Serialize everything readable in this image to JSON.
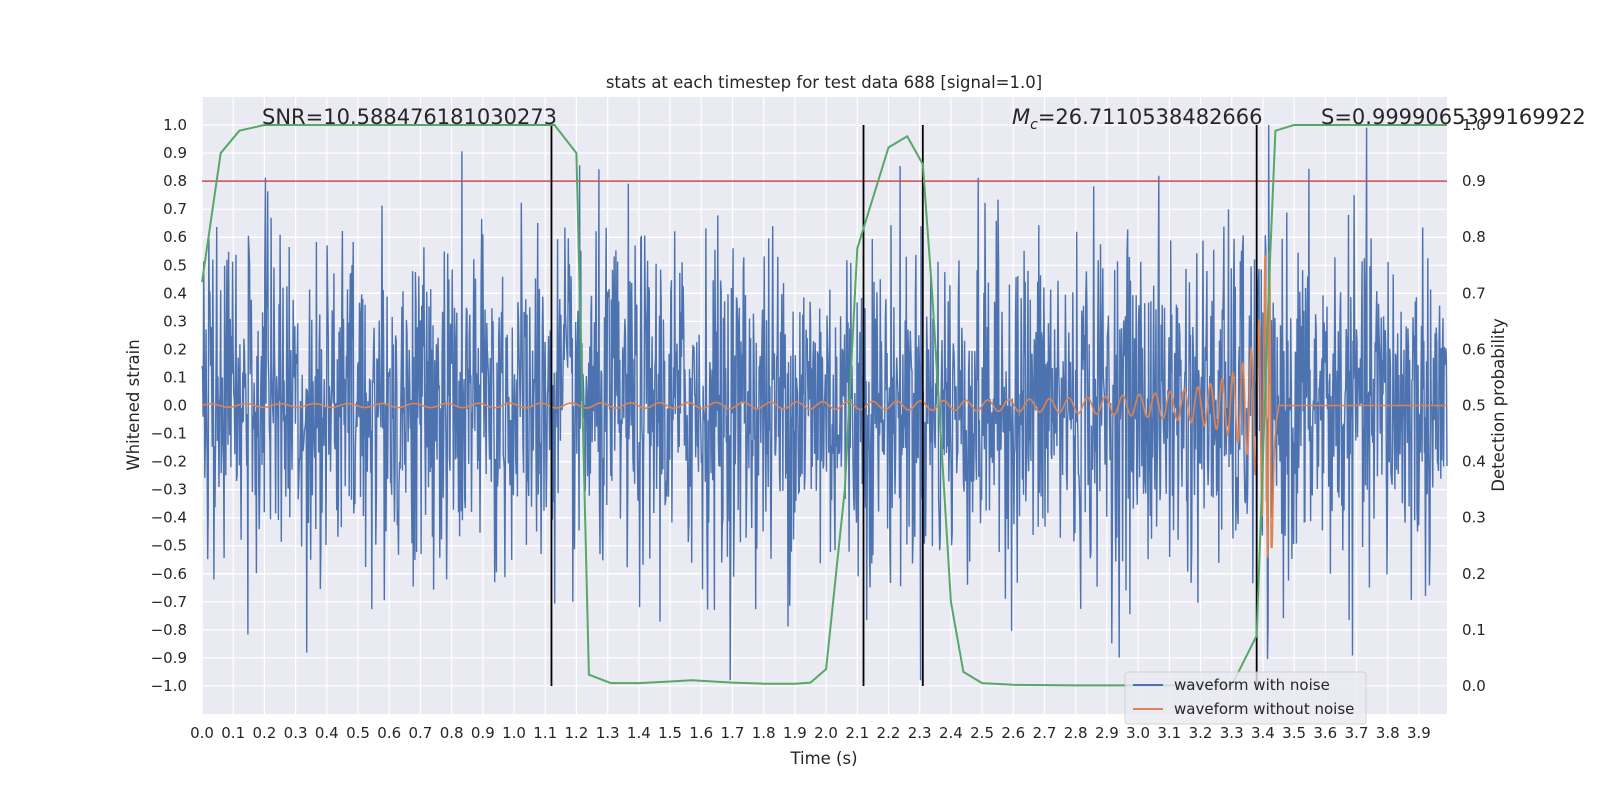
{
  "chart_data": {
    "type": "line",
    "title": "stats at each timestep for test data 688 [signal=1.0]",
    "xlabel": "Time (s)",
    "ylabel": "Whitened strain",
    "y2label": "Detection probability",
    "xlim": [
      0.0,
      3.99
    ],
    "ylim": [
      -1.1,
      1.1
    ],
    "y2lim": [
      -0.05,
      1.05
    ],
    "x_ticks": [
      0.0,
      0.1,
      0.2,
      0.3,
      0.4,
      0.5,
      0.6,
      0.7,
      0.8,
      0.9,
      1.0,
      1.1,
      1.2,
      1.3,
      1.4,
      1.5,
      1.6,
      1.7,
      1.8,
      1.9,
      2.0,
      2.1,
      2.2,
      2.3,
      2.4,
      2.5,
      2.6,
      2.7,
      2.8,
      2.9,
      3.0,
      3.1,
      3.2,
      3.3,
      3.4,
      3.5,
      3.6,
      3.7,
      3.8,
      3.9
    ],
    "x_tick_labels": [
      "0.0",
      "0.1",
      "0.2",
      "0.3",
      "0.4",
      "0.5",
      "0.6",
      "0.7",
      "0.8",
      "0.9",
      "1.0",
      "1.1",
      "1.2",
      "1.3",
      "1.4",
      "1.5",
      "1.6",
      "1.7",
      "1.8",
      "1.9",
      "2.0",
      "2.1",
      "2.2",
      "2.3",
      "2.4",
      "2.5",
      "2.6",
      "2.7",
      "2.8",
      "2.9",
      "3.0",
      "3.1",
      "3.2",
      "3.3",
      "3.4",
      "3.5",
      "3.6",
      "3.7",
      "3.8",
      "3.9"
    ],
    "y_ticks": [
      1.0,
      0.9,
      0.8,
      0.7,
      0.6,
      0.5,
      0.4,
      0.3,
      0.2,
      0.1,
      0.0,
      -0.1,
      -0.2,
      -0.3,
      -0.4,
      -0.5,
      -0.6,
      -0.7,
      -0.8,
      -0.9,
      -1.0
    ],
    "y_tick_labels": [
      "1.0",
      "0.9",
      "0.8",
      "0.7",
      "0.6",
      "0.5",
      "0.4",
      "0.3",
      "0.2",
      "0.1",
      "0.0",
      "−0.1",
      "−0.2",
      "−0.3",
      "−0.4",
      "−0.5",
      "−0.6",
      "−0.7",
      "−0.8",
      "−0.9",
      "−1.0"
    ],
    "y2_ticks": [
      1.0,
      0.9,
      0.8,
      0.7,
      0.6,
      0.5,
      0.4,
      0.3,
      0.2,
      0.1,
      0.0
    ],
    "y2_tick_labels": [
      "1.0",
      "0.9",
      "0.8",
      "0.7",
      "0.6",
      "0.5",
      "0.4",
      "0.3",
      "0.2",
      "0.1",
      "0.0"
    ],
    "annotations": {
      "snr": "SNR=10.588476181030273",
      "mc_symbol": "M",
      "mc_sub": "c",
      "mc_value": "=26.7110538482666",
      "s": "S=0.9999065399169922"
    },
    "threshold": {
      "value": 0.9,
      "axis": "y2",
      "color": "#c44e52"
    },
    "vertical_lines": [
      1.12,
      2.12,
      2.31,
      3.38
    ],
    "series": [
      {
        "name": "waveform with noise",
        "color": "#4c72b0",
        "axis": "y",
        "description": "whitened noisy strain, amplitude roughly within -0.85..0.85 with rare spikes to 1.0 and -1.0",
        "amplitude": 0.3,
        "peak_range": [
          -0.98,
          1.0
        ],
        "n_samples": 2200
      },
      {
        "name": "waveform without noise",
        "color": "#dd8452",
        "axis": "y",
        "description": "chirp signal with growing amplitude and frequency, merger near 3.42 s",
        "start_amplitude": 0.006,
        "max_amplitude": 0.55,
        "merger_time": 3.43
      },
      {
        "name": "detection probability",
        "color": "#55a868",
        "axis": "y2",
        "x": [
          0.0,
          0.06,
          0.12,
          0.2,
          0.3,
          0.5,
          0.8,
          1.0,
          1.1,
          1.13,
          1.2,
          1.24,
          1.31,
          1.4,
          1.5,
          1.57,
          1.7,
          1.8,
          1.9,
          1.95,
          2.0,
          2.06,
          2.1,
          2.2,
          2.26,
          2.31,
          2.34,
          2.4,
          2.44,
          2.5,
          2.6,
          2.8,
          3.0,
          3.3,
          3.38,
          3.42,
          3.44,
          3.5,
          3.6,
          3.8,
          3.99
        ],
        "values": [
          0.72,
          0.95,
          0.99,
          1.0,
          1.0,
          1.0,
          1.0,
          1.0,
          1.0,
          1.0,
          0.95,
          0.02,
          0.005,
          0.005,
          0.008,
          0.01,
          0.006,
          0.004,
          0.004,
          0.006,
          0.03,
          0.35,
          0.78,
          0.96,
          0.98,
          0.93,
          0.7,
          0.15,
          0.025,
          0.005,
          0.002,
          0.001,
          0.001,
          0.001,
          0.09,
          0.72,
          0.99,
          1.0,
          1.0,
          1.0,
          1.0
        ]
      }
    ],
    "legend": {
      "placement": "lower-right",
      "entries": [
        {
          "label": "waveform with noise",
          "color": "#4c72b0"
        },
        {
          "label": "waveform without noise",
          "color": "#dd8452"
        }
      ]
    },
    "grid": true
  }
}
